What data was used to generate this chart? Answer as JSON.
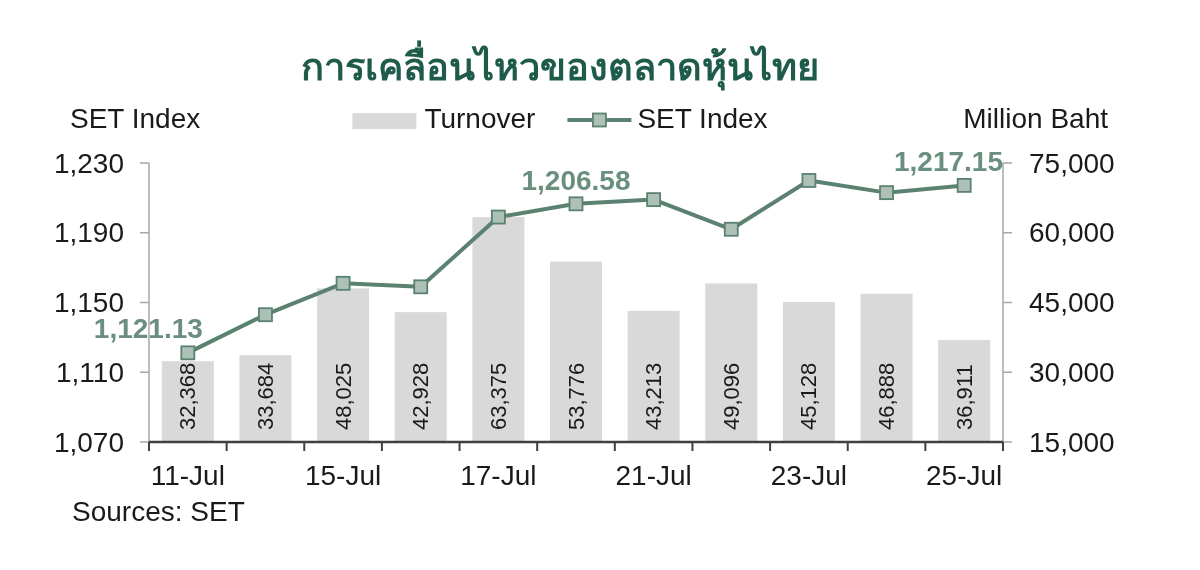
{
  "chart_data": {
    "type": "bar",
    "title": "การเคลื่อนไหวของตลาดหุ้นไทย",
    "ylabel": "SET Index",
    "y2label": "Million Baht",
    "categories": [
      "11-Jul",
      null,
      "15-Jul",
      null,
      "17-Jul",
      null,
      "21-Jul",
      null,
      "23-Jul",
      null,
      "25-Jul"
    ],
    "series": [
      {
        "name": "Turnover",
        "axis": "y2",
        "color": "#d9d9d9",
        "values": [
          32368,
          33684,
          48025,
          42928,
          63375,
          53776,
          43213,
          49096,
          45128,
          46888,
          36911
        ],
        "value_labels": [
          "32,368",
          "33,684",
          "48,025",
          "42,928",
          "63,375",
          "53,776",
          "43,213",
          "49,096",
          "45,128",
          "46,888",
          "36,911"
        ]
      },
      {
        "name": "SET Index",
        "type": "line",
        "color": "#5b8270",
        "marker": "square",
        "values": [
          1121.13,
          1143,
          1161,
          1159,
          1199,
          1206.58,
          1209,
          1192,
          1220,
          1213,
          1217.15
        ],
        "value_labels": [
          "1,121.13",
          null,
          null,
          null,
          null,
          "1,206.58",
          null,
          null,
          null,
          null,
          "1,217.15"
        ]
      }
    ],
    "ylim": [
      1070,
      1230
    ],
    "yticks": [
      {
        "value": 1070,
        "label": "1,070"
      },
      {
        "value": 1110,
        "label": "1,110"
      },
      {
        "value": 1150,
        "label": "1,150"
      },
      {
        "value": 1190,
        "label": "1,190"
      },
      {
        "value": 1230,
        "label": "1,230"
      }
    ],
    "y2lim": [
      15000,
      75000
    ],
    "y2ticks": [
      {
        "value": 15000,
        "label": "15,000"
      },
      {
        "value": 30000,
        "label": "30,000"
      },
      {
        "value": 45000,
        "label": "45,000"
      },
      {
        "value": 60000,
        "label": "60,000"
      },
      {
        "value": 75000,
        "label": "75,000"
      }
    ],
    "legend": "top",
    "annotations": [
      "Sources: SET"
    ]
  }
}
